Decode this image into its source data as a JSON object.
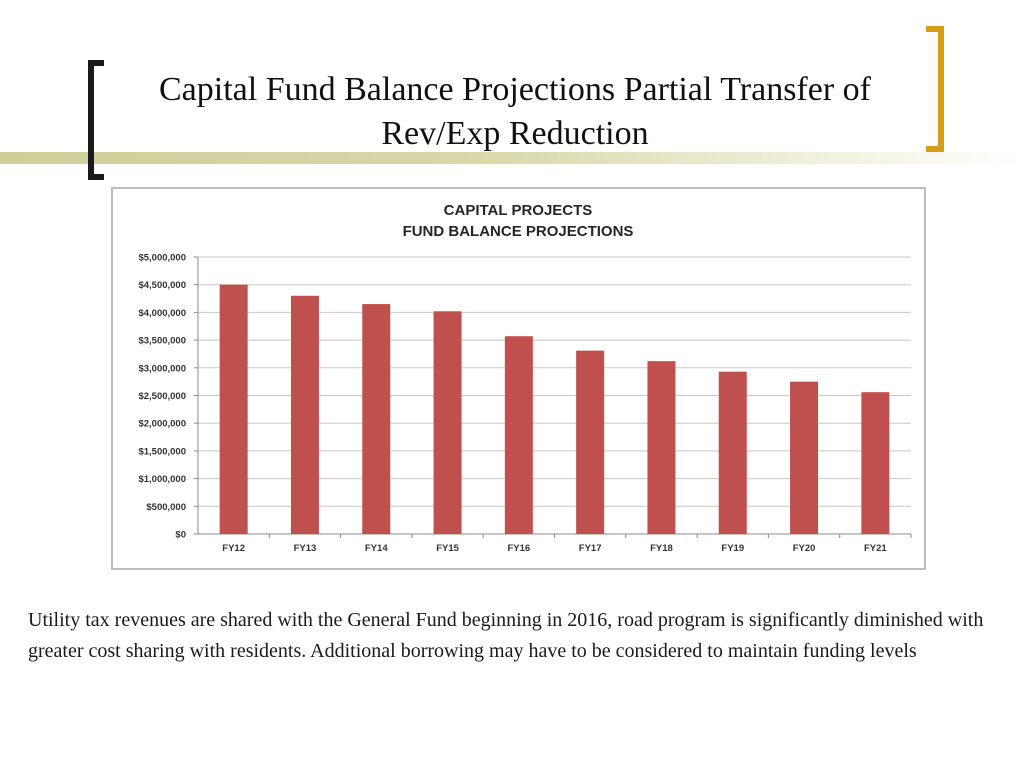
{
  "slide": {
    "title": "Capital Fund Balance Projections Partial Transfer of Rev/Exp Reduction",
    "caption": "Utility tax revenues are shared with the General Fund beginning in 2016, road program is significantly diminished with greater cost sharing with residents. Additional borrowing may have to be considered to maintain funding levels"
  },
  "colors": {
    "bar": "#c0504d",
    "grid": "#c8c8c8",
    "left_bracket": "#1a1a1a",
    "right_bracket": "#d4a017"
  },
  "chart_data": {
    "type": "bar",
    "title_lines": [
      "CAPITAL PROJECTS",
      "FUND BALANCE PROJECTIONS"
    ],
    "categories": [
      "FY12",
      "FY13",
      "FY14",
      "FY15",
      "FY16",
      "FY17",
      "FY18",
      "FY19",
      "FY20",
      "FY21"
    ],
    "values": [
      4500000,
      4300000,
      4150000,
      4020000,
      3570000,
      3310000,
      3120000,
      2930000,
      2750000,
      2560000
    ],
    "ylim": [
      0,
      5000000
    ],
    "yticks": [
      {
        "value": 0,
        "label": "$0"
      },
      {
        "value": 500000,
        "label": "$500,000"
      },
      {
        "value": 1000000,
        "label": "$1,000,000"
      },
      {
        "value": 1500000,
        "label": "$1,500,000"
      },
      {
        "value": 2000000,
        "label": "$2,000,000"
      },
      {
        "value": 2500000,
        "label": "$2,500,000"
      },
      {
        "value": 3000000,
        "label": "$3,000,000"
      },
      {
        "value": 3500000,
        "label": "$3,500,000"
      },
      {
        "value": 4000000,
        "label": "$4,000,000"
      },
      {
        "value": 4500000,
        "label": "$4,500,000"
      },
      {
        "value": 5000000,
        "label": "$5,000,000"
      }
    ],
    "grid": true,
    "legend": "none"
  }
}
